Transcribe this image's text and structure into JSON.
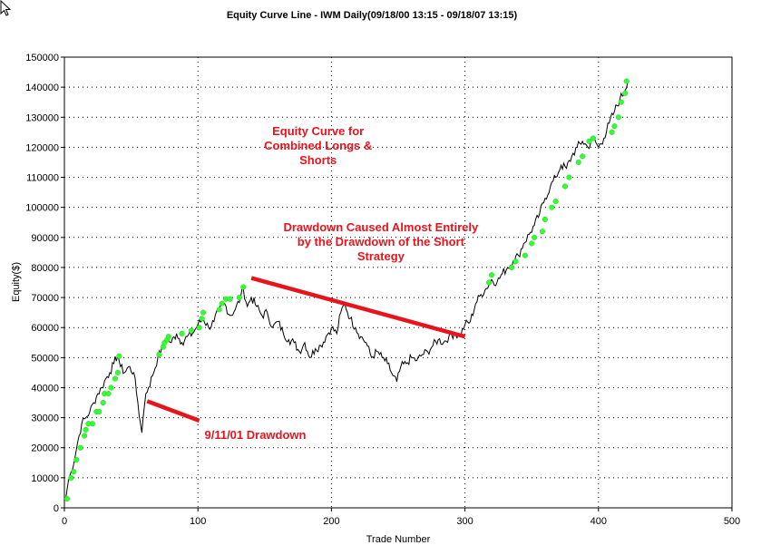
{
  "chart_data": {
    "type": "line",
    "title": "Equity Curve Line - IWM Daily(09/18/00 13:15 - 09/18/07 13:15)",
    "xlabel": "Trade Number",
    "ylabel": "Equity($)",
    "xlim": [
      0,
      500
    ],
    "ylim": [
      0,
      150000
    ],
    "x_ticks": [
      "0",
      "100",
      "200",
      "300",
      "400",
      "500"
    ],
    "y_ticks": [
      "0",
      "10000",
      "20000",
      "30000",
      "40000",
      "50000",
      "60000",
      "70000",
      "80000",
      "90000",
      "100000",
      "110000",
      "120000",
      "130000",
      "140000",
      "150000"
    ],
    "x_tick_values": [
      0,
      100,
      200,
      300,
      400,
      500
    ],
    "y_tick_values": [
      0,
      10000,
      20000,
      30000,
      40000,
      50000,
      60000,
      70000,
      80000,
      90000,
      100000,
      110000,
      120000,
      130000,
      140000,
      150000
    ],
    "grid": true,
    "line_color": "#000000",
    "highs_color": "#33ff33",
    "series": [
      {
        "values_x": [
          1,
          3,
          5,
          8,
          10,
          13,
          16,
          19,
          22,
          25,
          28,
          31,
          34,
          37,
          40,
          42,
          45,
          48,
          52,
          55,
          57,
          58,
          59,
          61,
          63,
          66,
          70,
          74,
          77,
          80,
          84,
          88,
          92,
          96,
          100,
          104,
          108,
          112,
          116,
          120,
          124,
          128,
          132,
          134,
          137,
          140,
          144,
          148,
          152,
          156,
          160,
          164,
          168,
          172,
          176,
          180,
          184,
          188,
          192,
          196,
          200,
          204,
          207,
          210,
          214,
          218,
          222,
          226,
          230,
          234,
          238,
          242,
          246,
          249,
          252,
          256,
          260,
          264,
          268,
          272,
          276,
          280,
          284,
          288,
          292,
          296,
          300,
          304,
          308,
          312,
          316,
          320,
          324,
          328,
          332,
          336,
          340,
          344,
          348,
          352,
          356,
          360,
          364,
          368,
          372,
          376,
          380,
          384,
          388,
          392,
          396,
          400,
          404,
          408,
          412,
          416,
          420,
          422
        ],
        "values_y": [
          3000,
          9000,
          12000,
          17000,
          22000,
          28000,
          30000,
          32000,
          35000,
          38000,
          40000,
          43000,
          45000,
          48000,
          51000,
          47000,
          45000,
          47000,
          45000,
          35000,
          28000,
          25000,
          30000,
          38000,
          40000,
          44000,
          50000,
          54000,
          56000,
          55000,
          58000,
          55000,
          57000,
          58000,
          61000,
          63000,
          60000,
          62000,
          66000,
          68000,
          64000,
          66000,
          70000,
          73000,
          67000,
          70000,
          67000,
          64000,
          65000,
          60000,
          62000,
          58000,
          56000,
          55000,
          52000,
          55000,
          50000,
          53000,
          54000,
          57000,
          60000,
          58000,
          65000,
          68000,
          63000,
          60000,
          57000,
          55000,
          50000,
          52000,
          50000,
          48000,
          44000,
          42000,
          47000,
          48000,
          50000,
          49000,
          51000,
          52000,
          54000,
          56000,
          55000,
          57000,
          58000,
          57000,
          61000,
          62000,
          68000,
          71000,
          73000,
          76000,
          75000,
          78000,
          80000,
          82000,
          84000,
          88000,
          91000,
          94000,
          98000,
          103000,
          107000,
          110000,
          114000,
          113000,
          117000,
          120000,
          122000,
          120000,
          123000,
          120000,
          123000,
          128000,
          132000,
          136000,
          139000,
          142000
        ]
      }
    ],
    "new_highs_x": [
      2,
      5,
      7,
      9,
      12,
      15,
      16,
      18,
      21,
      24,
      26,
      29,
      30,
      33,
      35,
      38,
      40,
      41,
      71,
      74,
      75,
      77,
      78,
      88,
      95,
      101,
      103,
      104,
      116,
      118,
      121,
      124,
      131,
      134,
      318,
      320,
      335,
      338,
      345,
      350,
      352,
      358,
      360,
      365,
      368,
      375,
      378,
      385,
      388,
      393,
      396,
      410,
      412,
      415,
      417,
      420,
      421
    ],
    "new_highs_y": [
      3000,
      10000,
      12000,
      16000,
      20000,
      24000,
      26000,
      28000,
      28000,
      32000,
      32000,
      35000,
      38000,
      38000,
      40000,
      43000,
      45000,
      50500,
      51000,
      53500,
      55000,
      56000,
      57000,
      58000,
      59000,
      60000,
      63000,
      65000,
      66000,
      68000,
      69500,
      69500,
      70000,
      73500,
      75000,
      77500,
      80000,
      82000,
      84000,
      88000,
      90000,
      92000,
      96000,
      100000,
      102000,
      107000,
      110000,
      115000,
      117000,
      122000,
      123000,
      125000,
      127000,
      130000,
      135000,
      138000,
      142000
    ],
    "annotations": [
      {
        "text": [
          "Equity Curve for",
          "Combined Longs &",
          "Shorts"
        ],
        "x": 190,
        "y": 124000
      },
      {
        "text": [
          "Drawdown Caused Almost Entirely",
          "by the Drawdown of the Short",
          "Strategy"
        ],
        "x": 237,
        "y": 92000
      },
      {
        "text": [
          "9/11/01 Drawdown"
        ],
        "x": 143,
        "y": 23000
      }
    ],
    "annotation_lines": [
      {
        "x1": 140,
        "y1": 76500,
        "x2": 300,
        "y2": 57000
      },
      {
        "x1": 62,
        "y1": 35500,
        "x2": 101,
        "y2": 29000
      }
    ]
  }
}
